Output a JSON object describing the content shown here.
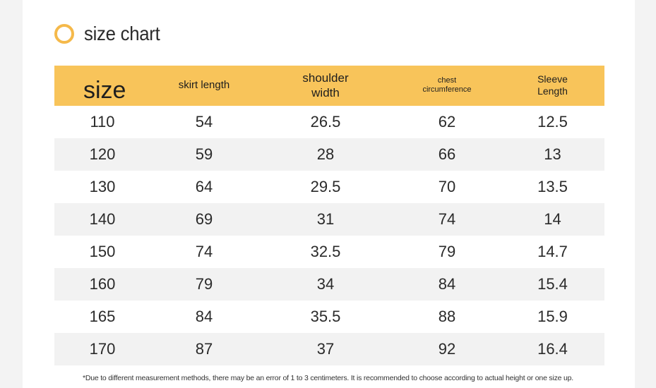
{
  "title": "size chart",
  "colors": {
    "accent": "#f8c45a",
    "ring": "#f5b94a"
  },
  "table": {
    "headers": {
      "size": "size",
      "skirt_length": "skirt length",
      "shoulder_width_line1": "shoulder",
      "shoulder_width_line2": "width",
      "chest_line1": "chest",
      "chest_line2": "circumference",
      "sleeve_line1": "Sleeve",
      "sleeve_line2": "Length"
    },
    "rows": [
      [
        "110",
        "54",
        "26.5",
        "62",
        "12.5"
      ],
      [
        "120",
        "59",
        "28",
        "66",
        "13"
      ],
      [
        "130",
        "64",
        "29.5",
        "70",
        "13.5"
      ],
      [
        "140",
        "69",
        "31",
        "74",
        "14"
      ],
      [
        "150",
        "74",
        "32.5",
        "79",
        "14.7"
      ],
      [
        "160",
        "79",
        "34",
        "84",
        "15.4"
      ],
      [
        "165",
        "84",
        "35.5",
        "88",
        "15.9"
      ],
      [
        "170",
        "87",
        "37",
        "92",
        "16.4"
      ]
    ]
  },
  "footnote": "*Due to different measurement methods, there may be an error of 1 to 3 centimeters. It is recommended to choose according to actual height or one size up."
}
